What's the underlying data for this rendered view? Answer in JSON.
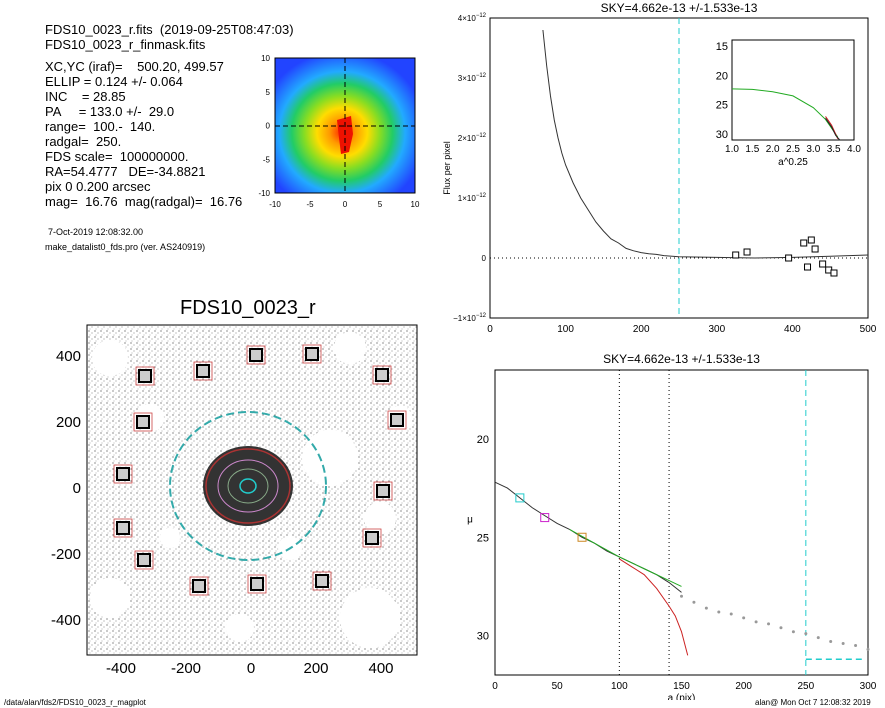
{
  "header": {
    "line1": "FDS10_0023_r.fits  (2019-09-25T08:47:03)",
    "line2": "FDS10_0023_r_finmask.fits",
    "params": [
      "XC,YC (iraf)=    500.20, 499.57",
      "ELLIP = 0.124 +/- 0.064",
      "INC    = 28.85",
      "PA     = 133.0 +/-  29.0",
      "range=  100.-  140.",
      "radgal=  250.",
      "FDS scale=  100000000.",
      "RA=54.4777   DE=-34.8821",
      "pix 0 0.200 arcsec",
      "mag=  16.76  mag(radgal)=  16.76"
    ],
    "date": "7-Oct-2019 12:08:32.00",
    "program": "make_datalist0_fds.pro (ver. AS240919)"
  },
  "thumb": {
    "x_ticks": [
      "-10",
      "-5",
      "0",
      "5",
      "10"
    ],
    "y_ticks": [
      "10",
      "5",
      "0",
      "-5",
      "-10"
    ]
  },
  "image_panel": {
    "title": "FDS10_0023_r",
    "x_ticks": [
      "-400",
      "-200",
      "0",
      "200",
      "400"
    ],
    "y_ticks": [
      "400",
      "200",
      "0",
      "-200",
      "-400"
    ]
  },
  "chart_data": [
    {
      "type": "line",
      "title": "SKY=4.662e-13 +/-1.533e-13",
      "ylabel": "Flux per pixel",
      "xlim": [
        0,
        500
      ],
      "ylim": [
        -1e-12,
        4e-12
      ],
      "x_ticks": [
        "0",
        "100",
        "200",
        "300",
        "400",
        "500"
      ],
      "y_ticks": [
        {
          "base": "−1×10",
          "exp": "−12"
        },
        {
          "base": "0",
          "exp": ""
        },
        {
          "base": "1×10",
          "exp": "−12"
        },
        {
          "base": "2×10",
          "exp": "−12"
        },
        {
          "base": "3×10",
          "exp": "−12"
        },
        {
          "base": "4×10",
          "exp": "−12"
        }
      ],
      "sky_radius": 250,
      "series": [
        {
          "color": "#333333",
          "x": [
            70,
            75,
            80,
            85,
            90,
            95,
            100,
            110,
            120,
            130,
            140,
            150,
            160,
            170,
            180,
            190,
            200,
            210,
            220,
            230,
            250,
            300,
            350,
            400,
            450,
            500
          ],
          "y": [
            3.8e-12,
            3.2e-12,
            2.7e-12,
            2.3e-12,
            2e-12,
            1.75e-12,
            1.55e-12,
            1.25e-12,
            1e-12,
            8e-13,
            6e-13,
            4.5e-13,
            3.2e-13,
            2.5e-13,
            1.6e-13,
            1.2e-13,
            9e-14,
            7e-14,
            6e-14,
            4e-14,
            2e-14,
            1e-14,
            0.0,
            1e-14,
            3e-14,
            5e-14
          ]
        }
      ],
      "boxes": [
        {
          "x": 325,
          "y": 5e-14
        },
        {
          "x": 340,
          "y": 1e-13
        },
        {
          "x": 395,
          "y": 0.0
        },
        {
          "x": 415,
          "y": 2.5e-13
        },
        {
          "x": 420,
          "y": -1.5e-13
        },
        {
          "x": 425,
          "y": 3e-13
        },
        {
          "x": 430,
          "y": 1.5e-13
        },
        {
          "x": 440,
          "y": -1e-13
        },
        {
          "x": 448,
          "y": -2e-13
        },
        {
          "x": 455,
          "y": -2.5e-13
        }
      ],
      "inset": {
        "x_ticks": [
          "1.0",
          "1.5",
          "2.0",
          "2.5",
          "3.0",
          "3.5",
          "4.0"
        ],
        "y_ticks": [
          "15",
          "20",
          "25",
          "30"
        ],
        "xlabel": "a^0.25",
        "xlim": [
          1.0,
          4.0
        ],
        "ylim": [
          14,
          31
        ],
        "curves": [
          {
            "color": "#22aa22",
            "x": [
              1.0,
              1.5,
              2.0,
              2.5,
              3.0,
              3.3,
              3.5,
              3.6
            ],
            "y": [
              22.3,
              22.4,
              22.8,
              23.5,
              25.5,
              27.5,
              29.5,
              30.5
            ]
          },
          {
            "color": "#cc2222",
            "x": [
              3.3,
              3.45,
              3.55,
              3.6
            ],
            "y": [
              27.0,
              28.5,
              30.0,
              30.8
            ]
          },
          {
            "color": "#222222",
            "x": [
              3.3,
              3.45,
              3.55,
              3.65
            ],
            "y": [
              27.3,
              28.8,
              30.2,
              31.0
            ]
          }
        ]
      }
    },
    {
      "type": "line",
      "title": "SKY=4.662e-13 +/-1.533e-13",
      "xlabel": "a (pix)",
      "ylabel": "μ",
      "xlim": [
        0,
        300
      ],
      "ylim": [
        32,
        16.5
      ],
      "x_ticks": [
        "0",
        "50",
        "100",
        "150",
        "200",
        "250",
        "300"
      ],
      "y_ticks": [
        "20",
        "25",
        "30"
      ],
      "range_lines": [
        100,
        140
      ],
      "sky_radius": 250,
      "sky_level": 31.2,
      "series": [
        {
          "color": "#333333",
          "x": [
            0,
            10,
            20,
            30,
            40,
            50,
            60,
            70,
            80,
            90,
            100,
            110,
            120,
            130,
            140,
            150
          ],
          "y": [
            22.2,
            22.5,
            23.0,
            23.5,
            23.9,
            24.3,
            24.6,
            25.0,
            25.3,
            25.7,
            26.0,
            26.3,
            26.6,
            26.9,
            27.3,
            27.8
          ]
        },
        {
          "color": "#cc2222",
          "x": [
            100,
            110,
            120,
            130,
            140,
            145,
            150,
            155
          ],
          "y": [
            26.1,
            26.5,
            26.9,
            27.6,
            28.5,
            29.0,
            29.8,
            31.0
          ]
        },
        {
          "color": "#22aa22",
          "x": [
            60,
            80,
            100,
            120,
            140,
            150
          ],
          "y": [
            24.6,
            25.3,
            26.0,
            26.6,
            27.2,
            27.5
          ]
        }
      ],
      "dots": {
        "x": [
          150,
          160,
          170,
          180,
          190,
          200,
          210,
          220,
          230,
          240,
          250,
          260,
          270,
          280,
          290,
          300
        ],
        "y": [
          28.0,
          28.3,
          28.6,
          28.8,
          28.9,
          29.1,
          29.3,
          29.4,
          29.6,
          29.8,
          29.9,
          30.1,
          30.3,
          30.4,
          30.5,
          30.7
        ]
      },
      "markers": [
        {
          "x": 20,
          "y": 23.0,
          "color": "#22cccc"
        },
        {
          "x": 40,
          "y": 24.0,
          "color": "#cc22cc"
        },
        {
          "x": 70,
          "y": 25.0,
          "color": "#cc8822"
        }
      ]
    }
  ],
  "footer": {
    "left": "/data/alan/fds2/FDS10_0023_r_magplot",
    "right": "alan@  Mon Oct  7 12:08:32 2019"
  }
}
